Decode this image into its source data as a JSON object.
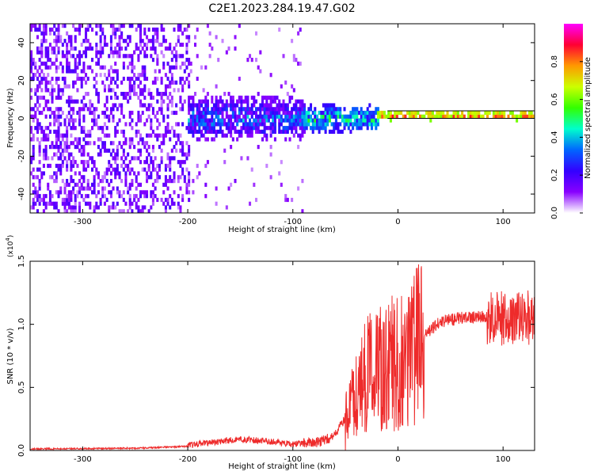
{
  "title": "C2E1.2023.284.19.47.G02",
  "colors": {
    "snr_line": "#ee2b2b",
    "band_outline": "#000000"
  },
  "colormap_stops": [
    "#ff00ff",
    "#ff0033",
    "#ff9900",
    "#ccff00",
    "#33ff00",
    "#00ffcc",
    "#0066ff",
    "#3300ff",
    "#8800ff",
    "#ffffff"
  ],
  "chart_data": [
    {
      "type": "heatmap",
      "title": "C2E1.2023.284.19.47.G02",
      "xlabel": "Height of straight line (km)",
      "ylabel": "Frequency (Hz)",
      "xlim": [
        -350,
        130
      ],
      "ylim": [
        -50,
        50
      ],
      "xticks": [
        -300,
        -200,
        -100,
        0,
        100
      ],
      "yticks": [
        -40,
        -20,
        0,
        20,
        40
      ],
      "grid": false,
      "colorbar": {
        "label": "Normalized spectral amplitude",
        "range": [
          0.0,
          1.0
        ],
        "ticks": [
          "0.0",
          "0.2",
          "0.4",
          "0.6",
          "0.8"
        ],
        "tick_values": [
          0.0,
          0.2,
          0.4,
          0.6,
          0.8
        ]
      },
      "features": [
        {
          "region": "noise",
          "x_range": [
            -350,
            -200
          ],
          "freq_range": [
            -50,
            50
          ],
          "amplitude": [
            0.05,
            0.2
          ]
        },
        {
          "region": "emerging_signal",
          "x_range": [
            -200,
            -90
          ],
          "freq_center": 0,
          "freq_halfwidth": 10,
          "amplitude": [
            0.1,
            0.45
          ]
        },
        {
          "region": "tracking",
          "x_range": [
            -90,
            -20
          ],
          "freq_center": 0,
          "freq_halfwidth": 6,
          "amplitude": [
            0.2,
            0.6
          ]
        },
        {
          "region": "stable_tone",
          "x_range": [
            -20,
            130
          ],
          "freq_center": 1.5,
          "freq_halfwidth": 2,
          "amplitude": [
            0.6,
            0.95
          ]
        }
      ]
    },
    {
      "type": "line",
      "xlabel": "Height of straight line (km)",
      "ylabel": "SNR (10 * v/v)",
      "ylabel_multiplier": "(x10",
      "ylabel_exponent": "4",
      "xlim": [
        -350,
        130
      ],
      "ylim": [
        0.0,
        1.5
      ],
      "xticks": [
        -300,
        -200,
        -100,
        0,
        100
      ],
      "yticks": [
        "0.0",
        "0.5",
        "1.0",
        "1.5"
      ],
      "ytick_values": [
        0.0,
        0.5,
        1.0,
        1.5
      ],
      "grid": false,
      "series": [
        {
          "envelope_x": [
            -350,
            -250,
            -200,
            -170,
            -150,
            -120,
            -100,
            -75,
            -60,
            -50,
            -40,
            -30,
            -20,
            -10,
            0,
            10,
            20,
            30,
            40,
            60,
            80,
            90,
            100,
            110,
            115,
            120,
            130
          ],
          "envelope_y": [
            0.01,
            0.015,
            0.03,
            0.06,
            0.08,
            0.06,
            0.04,
            0.05,
            0.1,
            0.25,
            0.45,
            0.6,
            0.65,
            0.7,
            0.68,
            0.72,
            0.85,
            0.95,
            1.02,
            1.05,
            1.06,
            1.06,
            1.05,
            1.04,
            1.08,
            1.05,
            1.05
          ]
        }
      ]
    }
  ]
}
